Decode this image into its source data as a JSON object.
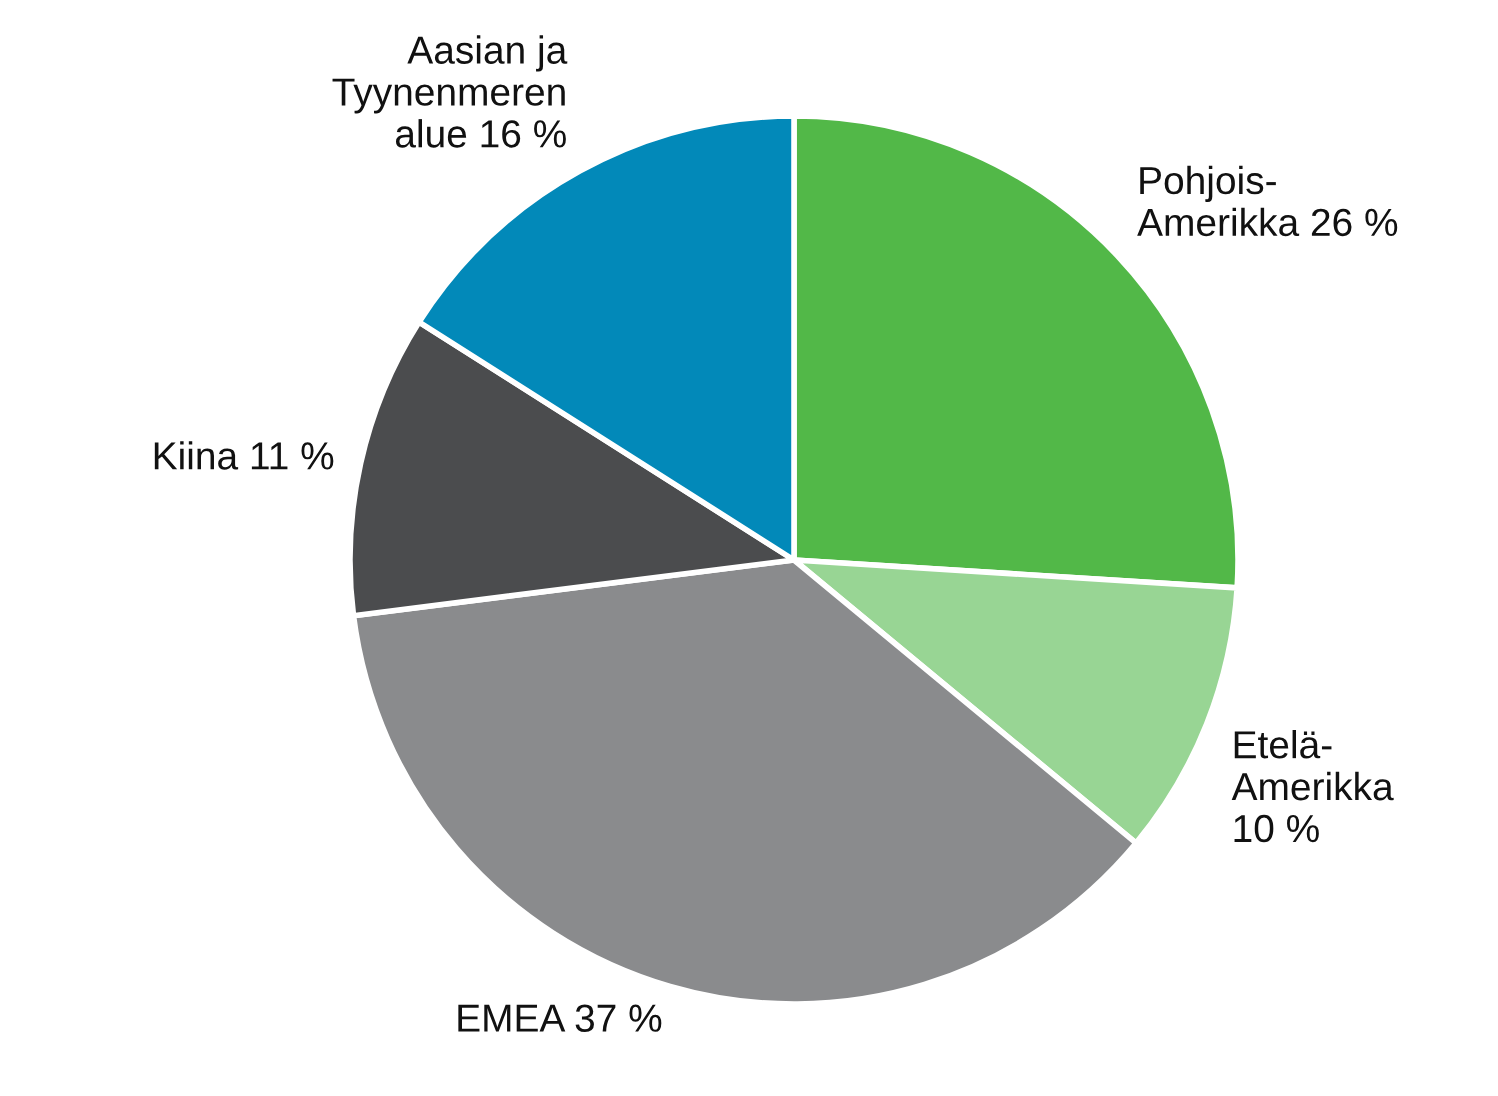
{
  "chart_data": {
    "type": "pie",
    "categories": [
      "Pohjois-\nAmerikka",
      "Etelä-\nAmerikka",
      "EMEA",
      "Kiina",
      "Aasian ja\nTyynenmeren\nalue"
    ],
    "values": [
      26,
      10,
      37,
      11,
      16
    ],
    "value_labels": [
      "26 %",
      "10 %",
      "37 %",
      "11 %",
      "16 %"
    ],
    "colors": [
      "#52b848",
      "#98d594",
      "#8a8b8d",
      "#4b4c4e",
      "#0289b9"
    ]
  }
}
